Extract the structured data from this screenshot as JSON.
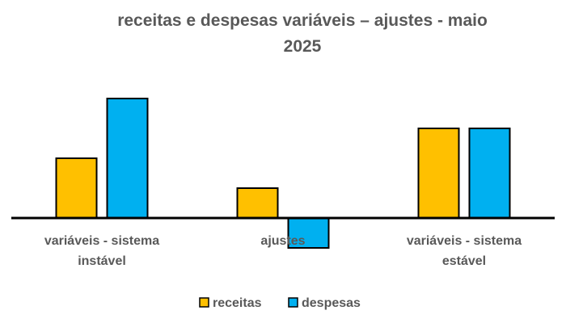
{
  "chart_data": {
    "type": "bar",
    "title": "receitas e despesas variáveis – ajustes - maio 2025",
    "title_lines": [
      "receitas e despesas variáveis – ajustes - maio",
      "2025"
    ],
    "categories": [
      "variáveis - sistema instável",
      "ajustes",
      "variáveis - sistema estável"
    ],
    "category_lines": [
      [
        "variáveis - sistema",
        "instável"
      ],
      [
        "ajustes"
      ],
      [
        "variáveis - sistema",
        "estável"
      ]
    ],
    "series": [
      {
        "name": "receitas",
        "color": "#FFC000",
        "values": [
          2.0,
          1.0,
          3.0
        ]
      },
      {
        "name": "despesas",
        "color": "#00B0F0",
        "values": [
          4.0,
          -1.0,
          3.0
        ]
      }
    ],
    "ylim": [
      -1.2,
      4.6
    ],
    "grid": false,
    "legend": "bottom",
    "xlabel": "",
    "ylabel": ""
  }
}
